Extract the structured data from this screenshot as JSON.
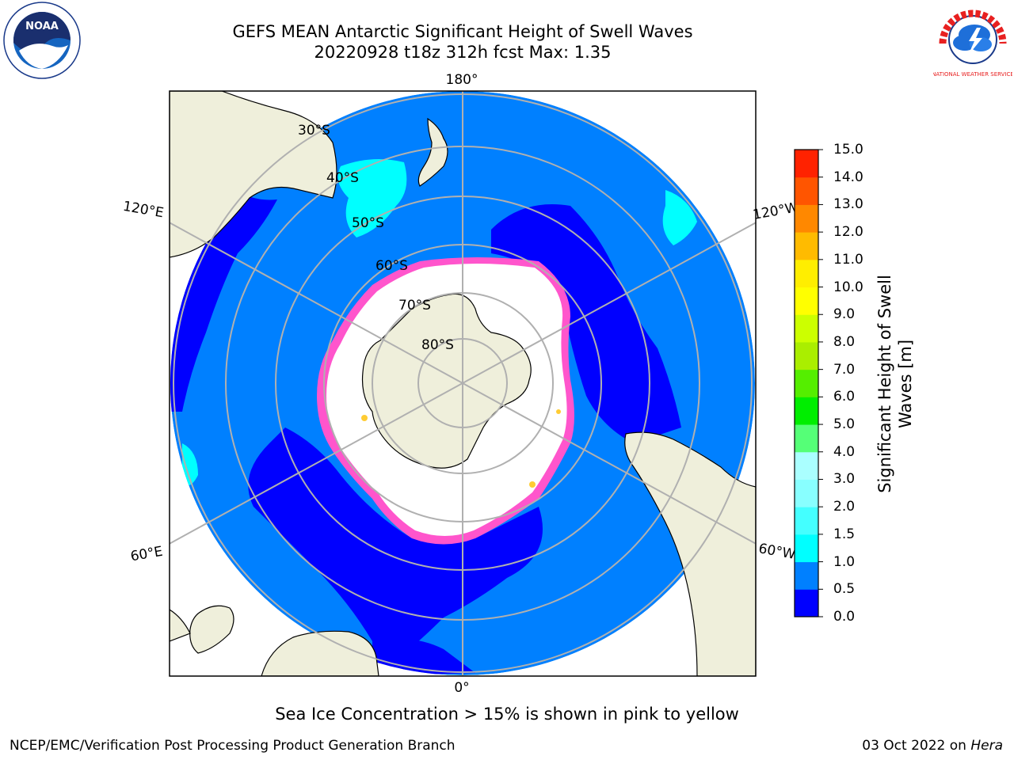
{
  "title_line1": "GEFS MEAN Antarctic Significant Height of Swell Waves",
  "title_line2": "20220928 t18z 312h fcst   Max: 1.35",
  "map": {
    "projection": "south-polar-stereographic",
    "longitude_labels": {
      "top": "180°",
      "bottom": "0°",
      "upper_left": "120°E",
      "upper_right": "120°W",
      "lower_left": "60°E",
      "lower_right": "60°W"
    },
    "latitude_labels": [
      "30°S",
      "40°S",
      "50°S",
      "60°S",
      "70°S",
      "80°S"
    ],
    "colors": {
      "land": "#efefdb",
      "ocean_mid": "#0080ff",
      "ocean_low": "#0000ff",
      "swell_cyan": "#00ffff",
      "ice_free_white": "#ffffff",
      "ice_edge_pink": "#ff55cc",
      "ice_edge_yellow": "#ffcc33",
      "grid": "#b0b0b0"
    }
  },
  "colorbar": {
    "label_line1": "Significant Height of Swell",
    "label_line2": "Waves [m]",
    "ticks": [
      "0.0",
      "0.5",
      "1.0",
      "1.5",
      "2.0",
      "3.0",
      "4.0",
      "5.0",
      "6.0",
      "7.0",
      "8.0",
      "9.0",
      "10.0",
      "11.0",
      "12.0",
      "13.0",
      "14.0",
      "15.0"
    ],
    "colors": [
      "#0000ff",
      "#0080ff",
      "#00ffff",
      "#44ffff",
      "#88ffff",
      "#aaffff",
      "#55ff77",
      "#00ee00",
      "#55ee00",
      "#aaee00",
      "#ccff00",
      "#ffff00",
      "#ffee00",
      "#ffbb00",
      "#ff8800",
      "#ff5500",
      "#ff2200"
    ]
  },
  "note": "Sea Ice Concentration > 15% is shown in pink to yellow",
  "footer_left": "NCEP/EMC/Verification Post Processing Product Generation Branch",
  "footer_right_date": "03 Oct 2022 on ",
  "footer_right_host": "Hera",
  "logos": {
    "noaa": "NOAA",
    "nws": "NATIONAL WEATHER SERVICE"
  }
}
